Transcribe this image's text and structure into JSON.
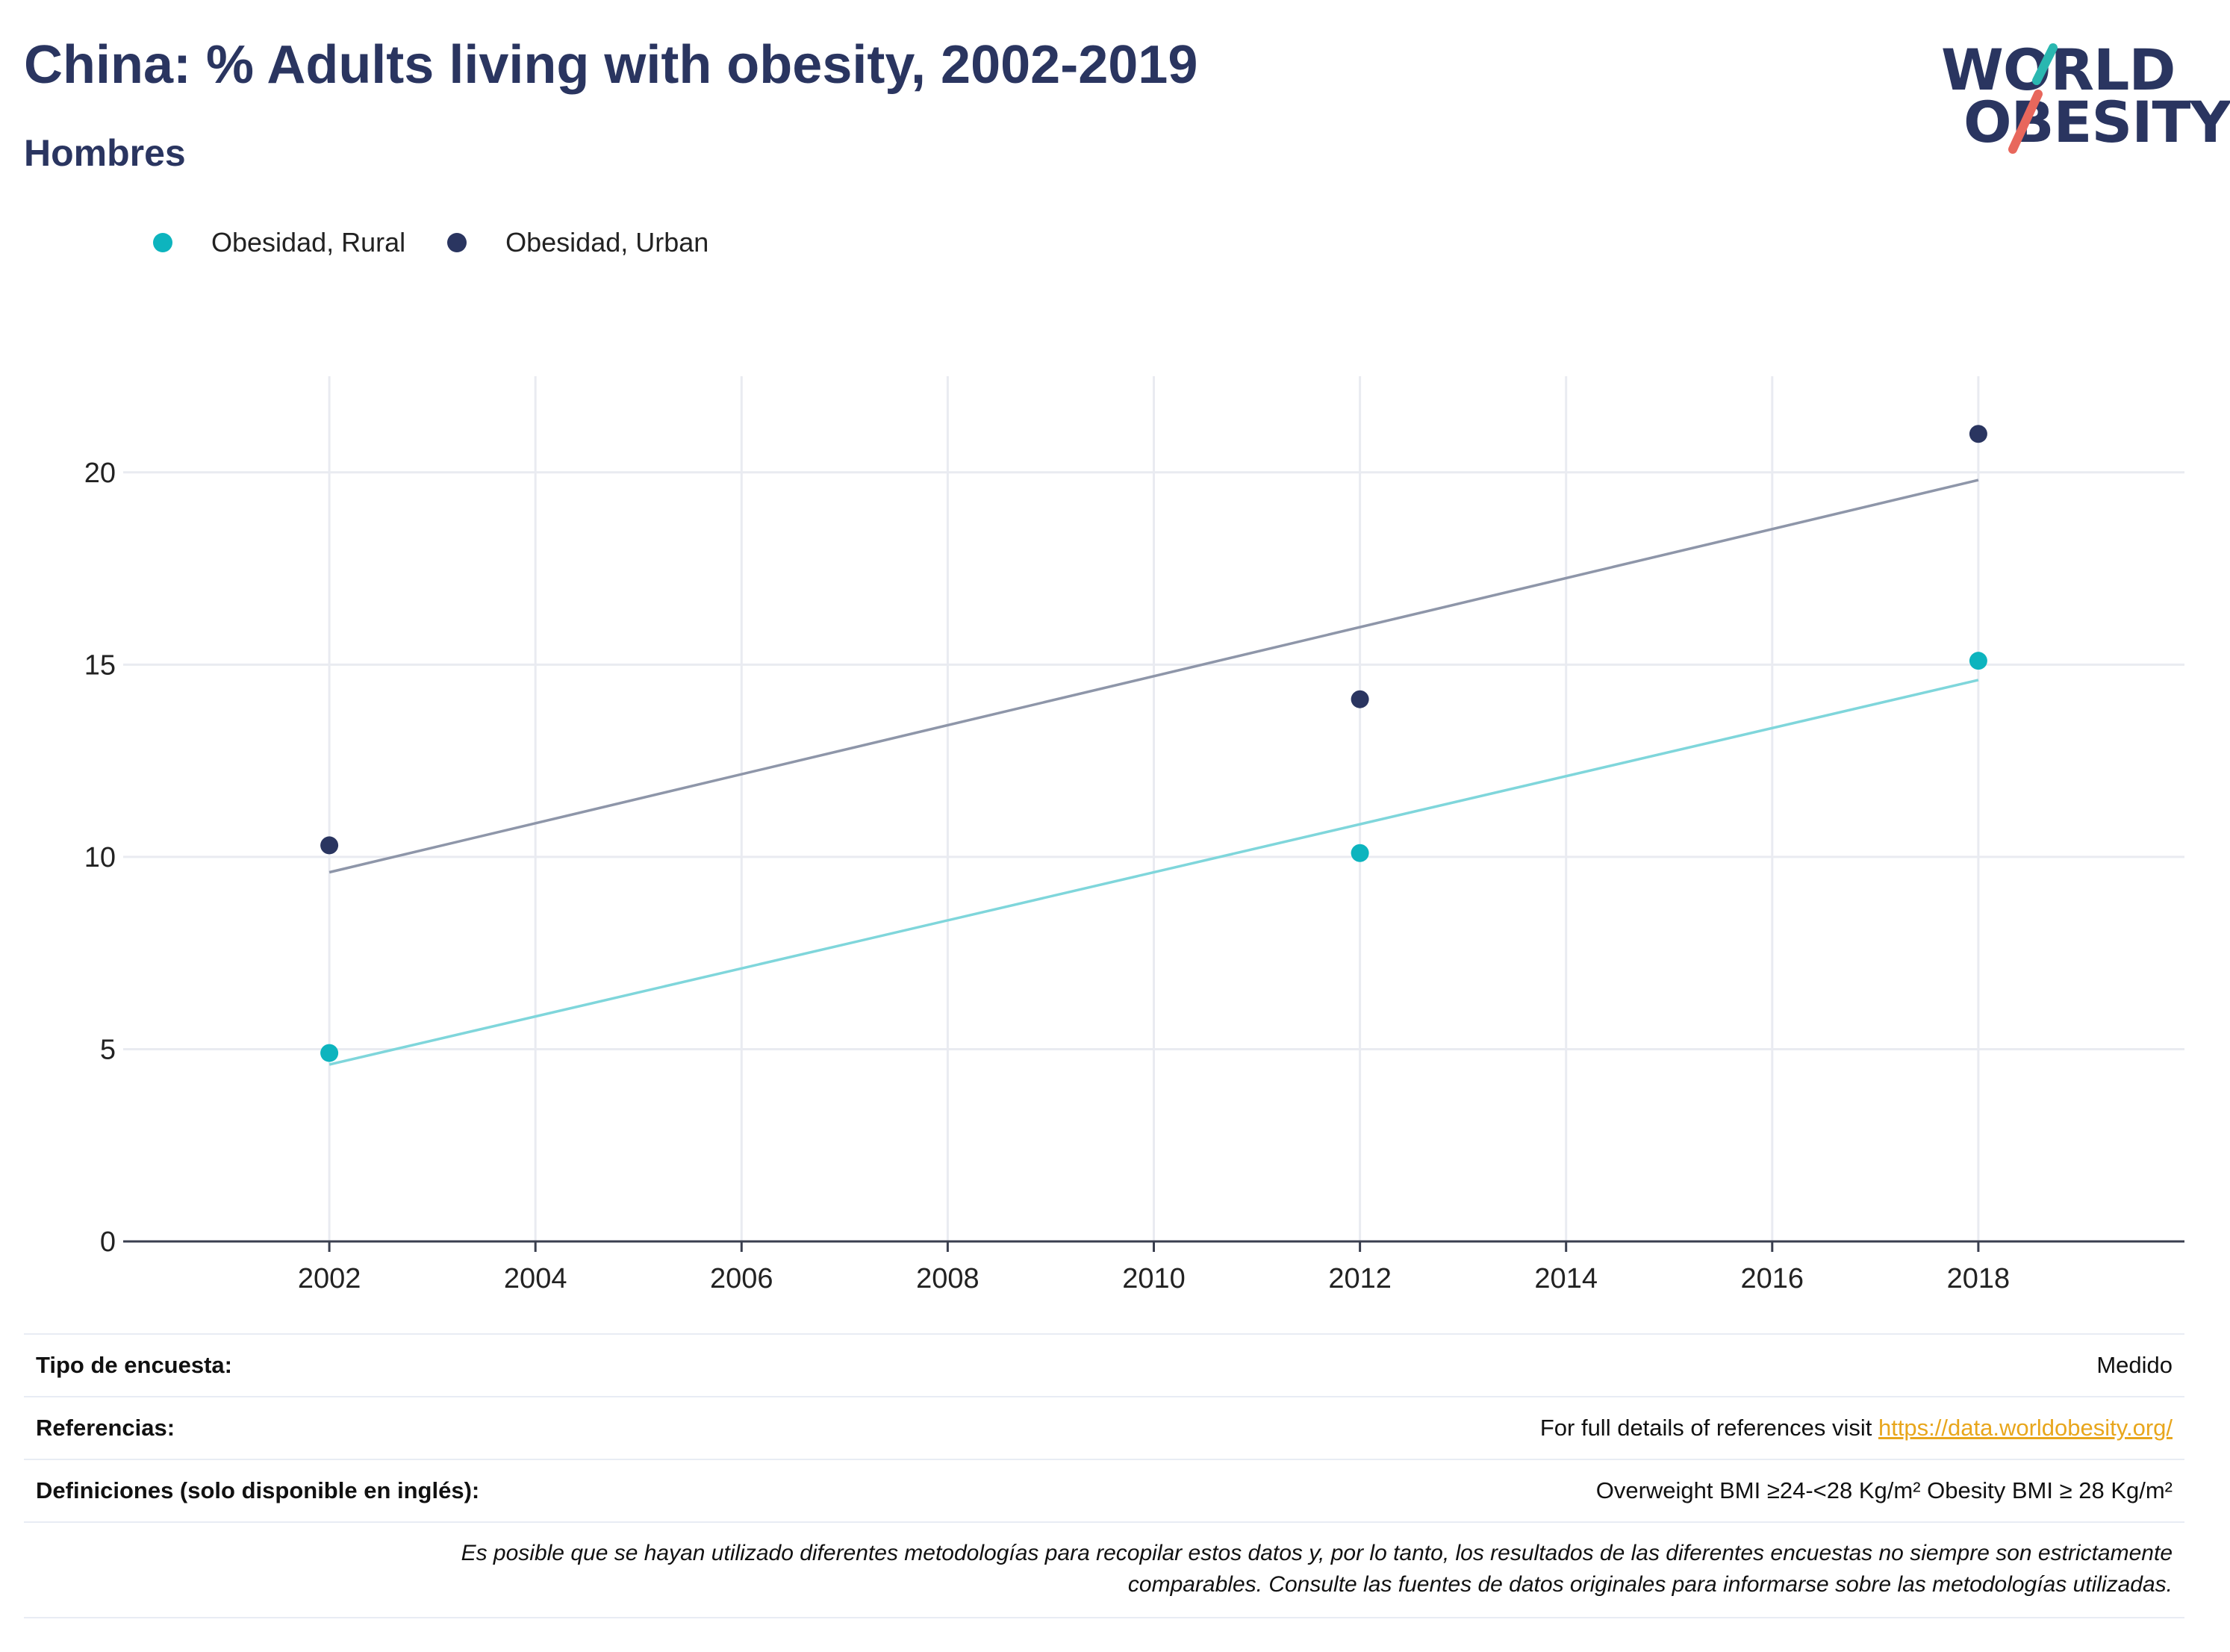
{
  "header": {
    "title": "China: % Adults living with obesity, 2002-2019",
    "subtitle": "Hombres"
  },
  "logo": {
    "line1": "WORLD",
    "line2": "OBESITY",
    "accent_teal": "#2ab7b0",
    "accent_red": "#e8675c"
  },
  "colors": {
    "rural": "#0db4be",
    "urban": "#2a3560",
    "rural_trend": "#7fd6db",
    "urban_trend": "#8e96a9"
  },
  "chart_data": {
    "type": "scatter",
    "x_ticks": [
      "2002",
      "2004",
      "2006",
      "2008",
      "2010",
      "2012",
      "2014",
      "2016",
      "2018"
    ],
    "y_ticks": [
      "0",
      "5",
      "10",
      "15",
      "20"
    ],
    "xlim": [
      2000,
      2020
    ],
    "ylim": [
      0,
      22.5
    ],
    "grid": true,
    "legend_position": "top-left",
    "series": [
      {
        "name": "Obesidad, Rural",
        "color": "#0db4be",
        "trend_color": "#7fd6db",
        "points": [
          {
            "x": 2002,
            "y": 4.9
          },
          {
            "x": 2012,
            "y": 10.1
          },
          {
            "x": 2018,
            "y": 15.1
          }
        ],
        "trend": [
          {
            "x": 2002,
            "y": 4.6
          },
          {
            "x": 2018,
            "y": 14.6
          }
        ]
      },
      {
        "name": "Obesidad, Urban",
        "color": "#2a3560",
        "trend_color": "#8e96a9",
        "points": [
          {
            "x": 2002,
            "y": 10.3
          },
          {
            "x": 2012,
            "y": 14.1
          },
          {
            "x": 2018,
            "y": 21.0
          }
        ],
        "trend": [
          {
            "x": 2002,
            "y": 9.6
          },
          {
            "x": 2018,
            "y": 19.8
          }
        ]
      }
    ]
  },
  "info": {
    "survey_type_label": "Tipo de encuesta:",
    "survey_type_value": "Medido",
    "references_label": "Referencias:",
    "references_text": "For full details of references visit ",
    "references_link": "https://data.worldobesity.org/",
    "definitions_label": "Definiciones (solo disponible en inglés):",
    "definitions_value": "Overweight BMI ≥24-<28 Kg/m² Obesity BMI ≥ 28 Kg/m²",
    "note_line1": "Es posible que se hayan utilizado diferentes metodologías para recopilar estos datos y, por lo tanto, los resultados de las diferentes encuestas no siempre son estrictamente",
    "note_line2": "comparables. Consulte las fuentes de datos originales para informarse sobre las metodologías utilizadas."
  }
}
